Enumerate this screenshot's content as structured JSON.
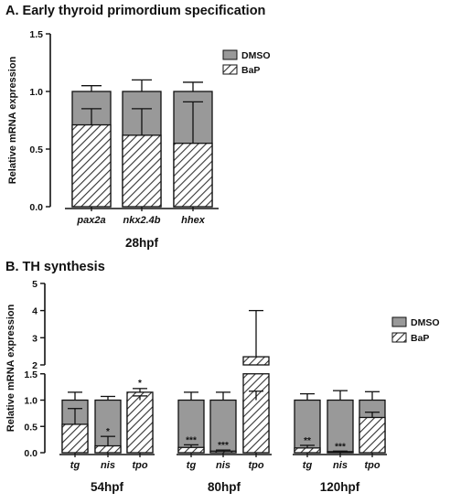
{
  "panels": {
    "a_title": "A. Early thyroid primordium specification",
    "b_title": "B. TH synthesis"
  },
  "chart_data": [
    {
      "type": "bar",
      "title": "A. Early thyroid primordium specification",
      "ylabel": "Relative mRNA expression",
      "xlabel": "28hpf",
      "ylim": [
        0,
        1.5
      ],
      "yticks": [
        "0.0",
        "0.5",
        "1.0",
        "1.5"
      ],
      "legend_position": "top-right",
      "categories": [
        "pax2a",
        "nkx2.4b",
        "hhex"
      ],
      "groups": [
        {
          "label": "28hpf",
          "categories": [
            "pax2a",
            "nkx2.4b",
            "hhex"
          ]
        }
      ],
      "series": [
        {
          "name": "DMSO",
          "color": "#999999",
          "values": [
            1.0,
            1.0,
            1.0
          ],
          "error": [
            0.05,
            0.1,
            0.08
          ]
        },
        {
          "name": "BaP",
          "pattern": "hatched",
          "values": [
            0.71,
            0.62,
            0.55
          ],
          "error": [
            0.14,
            0.23,
            0.36
          ]
        }
      ],
      "significance": [
        "",
        "",
        ""
      ]
    },
    {
      "type": "bar",
      "title": "B. TH synthesis",
      "ylabel": "Relative mRNA expression",
      "ylim": [
        0,
        5
      ],
      "axis_break": [
        1.5,
        2
      ],
      "yticks": [
        "0.0",
        "0.5",
        "1.0",
        "1.5",
        "2",
        "3",
        "4",
        "5"
      ],
      "legend_position": "right",
      "categories": [
        "tg",
        "nis",
        "tpo",
        "tg",
        "nis",
        "tpo",
        "tg",
        "nis",
        "tpo"
      ],
      "groups": [
        {
          "label": "54hpf",
          "categories": [
            "tg",
            "nis",
            "tpo"
          ]
        },
        {
          "label": "80hpf",
          "categories": [
            "tg",
            "nis",
            "tpo"
          ]
        },
        {
          "label": "120hpf",
          "categories": [
            "tg",
            "nis",
            "tpo"
          ]
        }
      ],
      "series": [
        {
          "name": "DMSO",
          "color": "#999999",
          "values": [
            1,
            1,
            1,
            1,
            1,
            1,
            1,
            1,
            1
          ],
          "error": [
            0.15,
            0.07,
            0.08,
            0.15,
            0.15,
            0.17,
            0.12,
            0.18,
            0.16
          ]
        },
        {
          "name": "BaP",
          "pattern": "hatched",
          "values": [
            0.54,
            0.13,
            1.15,
            0.1,
            0.03,
            2.3,
            0.09,
            0.02,
            0.67
          ],
          "error": [
            0.3,
            0.18,
            0.07,
            0.05,
            0.02,
            1.7,
            0.05,
            0.01,
            0.1
          ]
        }
      ],
      "significance": [
        "",
        "*",
        "*",
        "***",
        "***",
        "",
        "**",
        "***",
        ""
      ]
    }
  ]
}
